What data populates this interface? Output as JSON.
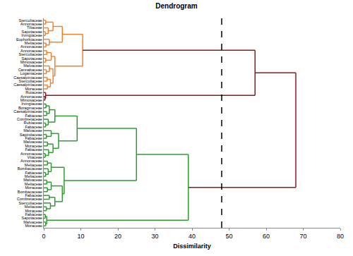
{
  "chart_data": {
    "type": "dendrogram",
    "title": "Dendrogram",
    "x_label": "Dissimilarity",
    "xlim": [
      0,
      80
    ],
    "xticks": [
      0,
      10,
      20,
      30,
      40,
      50,
      60,
      70,
      80
    ],
    "grid": false,
    "cut": {
      "value": 48,
      "line_style": "dash",
      "color": "#000000"
    },
    "tree": {
      "height": 68,
      "color": "#8b1a1a",
      "children": [
        {
          "height": 57,
          "children": [
            {
              "height": 10.5,
              "color": "#f0842c",
              "children": [
                {
                  "height": 5,
                  "children": [
                    {
                      "height": 2.5,
                      "children": [
                        {
                          "height": 0.5,
                          "children": [
                            "Sterculiaceae",
                            "Annonaceae"
                          ]
                        },
                        {
                          "height": 1.2,
                          "children": [
                            "Tiliaceae",
                            {
                              "height": 0.4,
                              "children": [
                                "Sapotaceae",
                                "Irvingiaceae"
                              ]
                            }
                          ]
                        }
                      ]
                    },
                    {
                      "height": 1.5,
                      "children": [
                        "Euphorbiaceae",
                        {
                          "height": 0.6,
                          "children": [
                            "Meliaceae",
                            "Annonaceae"
                          ]
                        }
                      ]
                    }
                  ]
                },
                {
                  "height": 3,
                  "children": [
                    {
                      "height": 2,
                      "children": [
                        {
                          "height": 0.8,
                          "children": [
                            "Annonaceae",
                            "Sterculiaceae"
                          ]
                        },
                        {
                          "height": 0.5,
                          "children": [
                            "Sapotaceae",
                            "Mimosaceae"
                          ]
                        }
                      ]
                    },
                    {
                      "height": 2.5,
                      "children": [
                        {
                          "height": 1.5,
                          "children": [
                            "Malvaceae",
                            {
                              "height": 0.7,
                              "children": [
                                "Cannabaceae",
                                "Loganiaceae"
                              ]
                            }
                          ]
                        },
                        {
                          "height": 1.8,
                          "children": [
                            {
                              "height": 0.9,
                              "children": [
                                "Caesalpiniaceae",
                                "Sterculiaceae"
                              ]
                            },
                            {
                              "height": 1,
                              "children": [
                                "Caesalpiniaceae",
                                "Moraceae"
                              ]
                            }
                          ]
                        }
                      ]
                    }
                  ]
                }
              ]
            },
            {
              "height": 0.5,
              "children": [
                "Rutaceae",
                {
                  "height": 0.3,
                  "children": [
                    "Annonaceae",
                    "Mimosaceae"
                  ]
                }
              ]
            }
          ]
        },
        {
          "height": 39,
          "color": "#339933",
          "children": [
            {
              "height": 25,
              "children": [
                {
                  "height": 9,
                  "children": [
                    {
                      "height": 3,
                      "children": [
                        {
                          "height": 1.5,
                          "children": [
                            {
                              "height": 0.6,
                              "children": [
                                "Irvingiaceae",
                                "Boraginaceae"
                              ]
                            },
                            {
                              "height": 0.8,
                              "children": [
                                "Caesalpiniaceae",
                                "Fabaceae"
                              ]
                            }
                          ]
                        },
                        {
                          "height": 1.2,
                          "children": [
                            "Combretaceae",
                            {
                              "height": 0.5,
                              "children": [
                                "Rubiaceae",
                                "Fabaceae"
                              ]
                            }
                          ]
                        }
                      ]
                    },
                    {
                      "height": 4,
                      "children": [
                        {
                          "height": 2,
                          "children": [
                            "Malvaceae",
                            {
                              "height": 0.7,
                              "children": [
                                "Sapindaceae",
                                "Fabaceae"
                              ]
                            }
                          ]
                        },
                        {
                          "height": 2.5,
                          "children": [
                            {
                              "height": 1,
                              "children": [
                                "Malvaceae",
                                "Moraceae"
                              ]
                            },
                            {
                              "height": 1.3,
                              "children": [
                                "Fabaceae",
                                {
                                  "height": 0.4,
                                  "children": [
                                    "Annonaceae",
                                    "Vitaceae"
                                  ]
                                }
                              ]
                            }
                          ]
                        }
                      ]
                    }
                  ]
                },
                {
                  "height": 5.5,
                  "children": [
                    {
                      "height": 2,
                      "children": [
                        {
                          "height": 1,
                          "children": [
                            "Annonaceae",
                            "Meliaceae"
                          ]
                        },
                        {
                          "height": 1.2,
                          "children": [
                            "Bombacaceae",
                            {
                              "height": 0.5,
                              "children": [
                                "Fabaceae",
                                "Meliaceae"
                              ]
                            }
                          ]
                        }
                      ]
                    },
                    {
                      "height": 5,
                      "children": [
                        {
                          "height": 2,
                          "children": [
                            {
                              "height": 0.8,
                              "children": [
                                "Malvaceae",
                                "Meliaceae"
                              ]
                            },
                            {
                              "height": 1,
                              "children": [
                                "Moraceae",
                                "Bombacaceae"
                              ]
                            }
                          ]
                        },
                        {
                          "height": 3,
                          "children": [
                            {
                              "height": 1.5,
                              "children": [
                                "Fabaceae",
                                "Combretaceae"
                              ]
                            },
                            {
                              "height": 1.8,
                              "children": [
                                "Sterculiaceae",
                                {
                                  "height": 0.7,
                                  "children": [
                                    "Meliaceae",
                                    "Moraceae"
                                  ]
                                }
                              ]
                            }
                          ]
                        }
                      ]
                    }
                  ]
                }
              ]
            },
            {
              "height": 0.8,
              "children": [
                {
                  "height": 0.4,
                  "children": [
                    "Fabaceae",
                    "Sapotaceae"
                  ]
                },
                {
                  "height": 0.5,
                  "children": [
                    "Malvaceae",
                    "Moraceae"
                  ]
                }
              ]
            }
          ]
        }
      ]
    }
  }
}
